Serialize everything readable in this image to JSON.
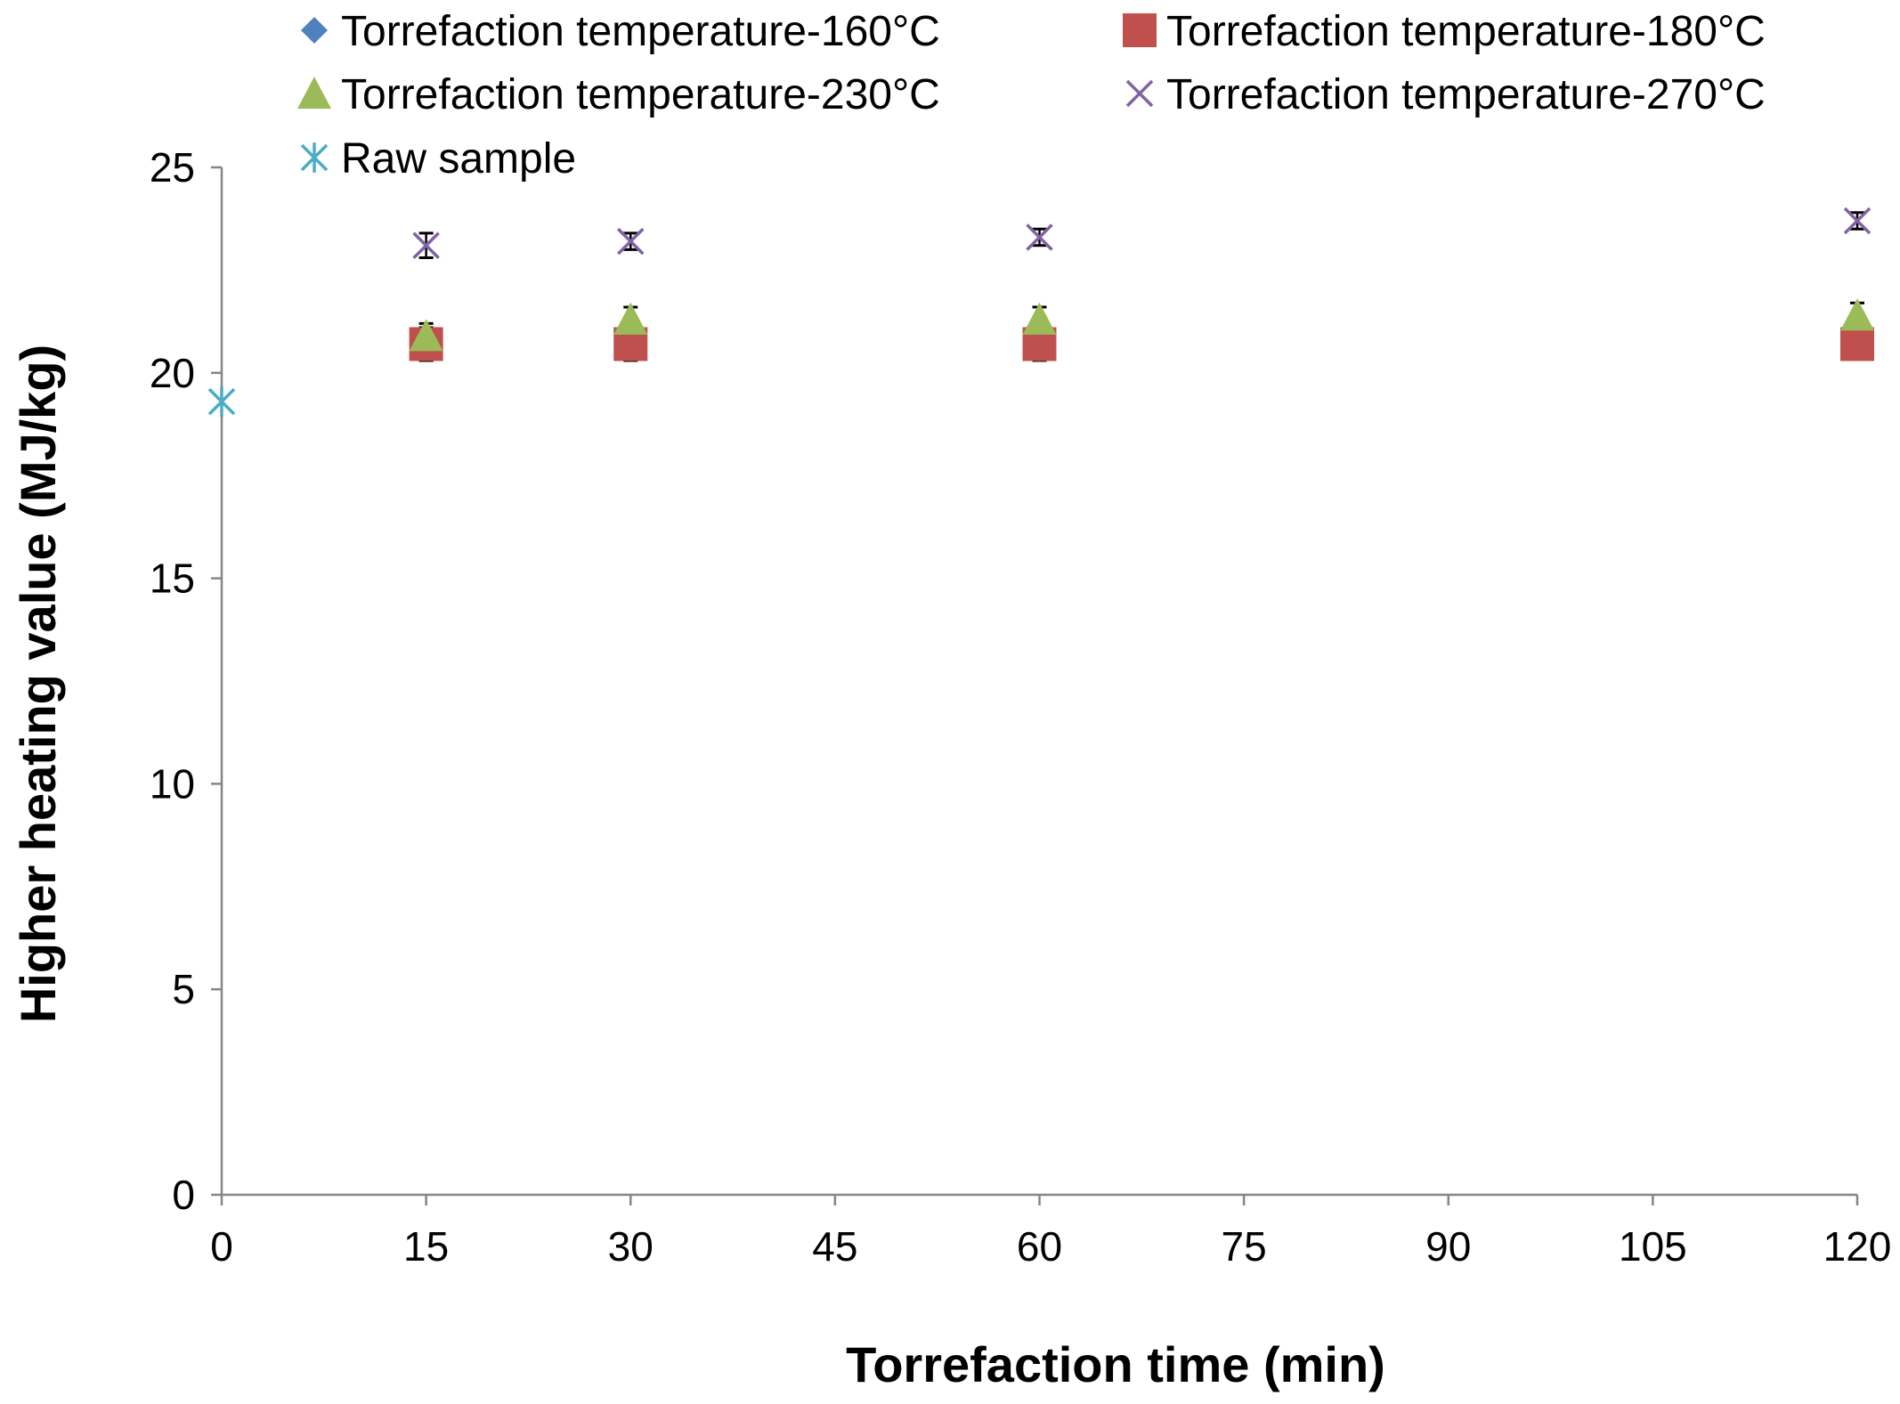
{
  "colors": {
    "blue": "#4f81bd",
    "red": "#c0504d",
    "green": "#9bbb59",
    "purple": "#8064a2",
    "cyan": "#4bacc6",
    "axis": "#868686"
  },
  "chart_data": {
    "type": "scatter",
    "title": "",
    "xlabel": "Torrefaction time (min)",
    "ylabel": "Higher heating value (MJ/kg)",
    "xlim": [
      0,
      120
    ],
    "ylim": [
      0,
      25
    ],
    "x_ticks": [
      "0",
      "15",
      "30",
      "45",
      "60",
      "75",
      "90",
      "105",
      "120"
    ],
    "y_ticks": [
      "0",
      "5",
      "10",
      "15",
      "20",
      "25"
    ],
    "legend_position": "top",
    "series": [
      {
        "name": "Torrefaction temperature-160°C",
        "marker": "diamond",
        "color_key": "blue",
        "x": [
          15,
          30,
          60,
          120
        ],
        "y": [
          20.6,
          20.6,
          20.6,
          20.7
        ],
        "err": [
          0.3,
          0.3,
          0.3,
          0.3
        ]
      },
      {
        "name": "Torrefaction temperature-180°C",
        "marker": "square",
        "color_key": "red",
        "x": [
          15,
          30,
          60,
          120
        ],
        "y": [
          20.7,
          20.7,
          20.7,
          20.7
        ],
        "err": [
          0.4,
          0.3,
          0.3,
          0.3
        ]
      },
      {
        "name": "Torrefaction temperature-230°C",
        "marker": "triangle",
        "color_key": "green",
        "x": [
          15,
          30,
          60,
          120
        ],
        "y": [
          20.9,
          21.3,
          21.3,
          21.4
        ],
        "err": [
          0.3,
          0.3,
          0.3,
          0.3
        ]
      },
      {
        "name": "Torrefaction temperature-270°C",
        "marker": "x",
        "color_key": "purple",
        "x": [
          15,
          30,
          60,
          120
        ],
        "y": [
          23.1,
          23.2,
          23.3,
          23.7
        ],
        "err": [
          0.3,
          0.2,
          0.2,
          0.2
        ]
      },
      {
        "name": "Raw sample",
        "marker": "star",
        "color_key": "cyan",
        "x": [
          0
        ],
        "y": [
          19.3
        ],
        "err": [
          0
        ]
      }
    ]
  }
}
